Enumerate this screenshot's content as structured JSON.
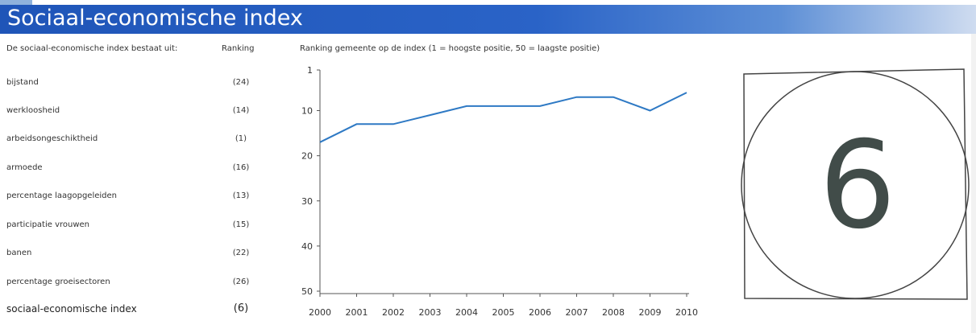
{
  "header": {
    "title": "Sociaal-economische index"
  },
  "list": {
    "heading": "De sociaal-economische index bestaat uit:",
    "ranking_heading": "Ranking",
    "items": [
      {
        "label": "bijstand",
        "rank": "(24)"
      },
      {
        "label": "werkloosheid",
        "rank": "(14)"
      },
      {
        "label": "arbeidsongeschiktheid",
        "rank": "(1)"
      },
      {
        "label": "armoede",
        "rank": "(16)"
      },
      {
        "label": "percentage laagopgeleiden",
        "rank": "(13)"
      },
      {
        "label": "participatie vrouwen",
        "rank": "(15)"
      },
      {
        "label": "banen",
        "rank": "(22)"
      },
      {
        "label": "percentage groeisectoren",
        "rank": "(26)"
      }
    ],
    "total": {
      "label": "sociaal-economische index",
      "rank": "(6)"
    }
  },
  "badge": {
    "value": "6"
  },
  "colors": {
    "header": "#2a63c7",
    "line": "#2e79c4",
    "badge_text": "#414c49"
  },
  "chart_data": {
    "type": "line",
    "title": "Ranking gemeente op de index (1 = hoogste positie, 50 = laagste positie)",
    "x": [
      2000,
      2001,
      2002,
      2003,
      2004,
      2005,
      2006,
      2007,
      2008,
      2009,
      2010
    ],
    "series": [
      {
        "values": [
          17,
          13,
          13,
          11,
          9,
          9,
          9,
          7,
          7,
          10,
          6
        ]
      }
    ],
    "y_ticks": [
      1,
      10,
      20,
      30,
      40,
      50
    ],
    "x_ticks": [
      "2000",
      "2001",
      "2002",
      "2003",
      "2004",
      "2005",
      "2006",
      "2007",
      "2008",
      "2009",
      "2010"
    ],
    "ylim": [
      1,
      50
    ],
    "y_inverted": true,
    "grid": false
  }
}
